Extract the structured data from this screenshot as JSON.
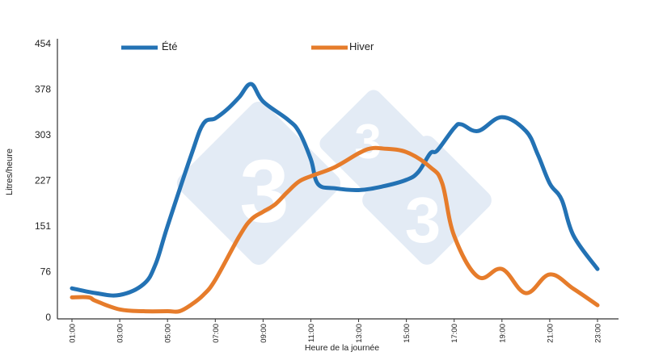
{
  "chart_data": {
    "type": "line",
    "title": "",
    "xlabel": "Heure de la journée",
    "ylabel": "Litres/heure",
    "ylim": [
      0,
      454
    ],
    "xlim": [
      1,
      23
    ],
    "y_ticks": [
      0,
      76,
      151,
      227,
      303,
      378,
      454
    ],
    "x_tick_labels": [
      "01:00",
      "03:00",
      "05:00",
      "07:00",
      "09:00",
      "11:00",
      "13:00",
      "15:00",
      "17:00",
      "19:00",
      "21:00",
      "23:00"
    ],
    "x_tick_values": [
      1,
      3,
      5,
      7,
      9,
      11,
      13,
      15,
      17,
      19,
      21,
      23
    ],
    "grid": false,
    "legend_position": "top",
    "series": [
      {
        "name": "Été",
        "color": "#2372b4",
        "x": [
          1,
          2,
          3,
          4,
          4.5,
          5,
          6,
          6.5,
          7,
          7.5,
          8,
          8.5,
          9,
          10,
          10.5,
          11,
          11.3,
          12,
          13,
          14,
          15,
          15.5,
          16,
          16.3,
          17,
          17.3,
          18,
          19,
          20,
          20.5,
          21,
          21.5,
          22,
          23
        ],
        "y": [
          48,
          40,
          37,
          55,
          88,
          151,
          270,
          321,
          330,
          345,
          365,
          387,
          358,
          329,
          308,
          262,
          221,
          214,
          211,
          217,
          228,
          241,
          272,
          277,
          314,
          320,
          309,
          332,
          309,
          270,
          222,
          195,
          135,
          80
        ]
      },
      {
        "name": "Hiver",
        "color": "#e67c2b",
        "x": [
          1,
          1.7,
          2,
          3,
          4,
          5,
          5.5,
          6,
          6.5,
          7,
          8,
          8.5,
          9,
          9.5,
          10,
          10.5,
          11,
          12,
          13,
          13.5,
          14,
          15,
          16,
          16.5,
          17,
          18,
          19,
          20,
          21,
          22,
          23
        ],
        "y": [
          33,
          33,
          27,
          13,
          10,
          10,
          10,
          21,
          37,
          62,
          134,
          162,
          175,
          187,
          207,
          225,
          234,
          249,
          272,
          280,
          280,
          274,
          249,
          222,
          135,
          67,
          80,
          40,
          71,
          47,
          20
        ]
      }
    ]
  }
}
